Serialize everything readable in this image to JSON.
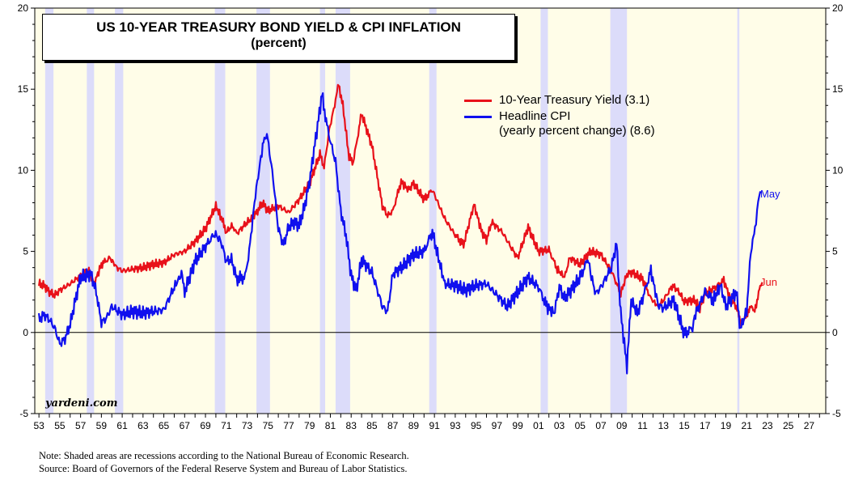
{
  "chart_data": {
    "type": "line",
    "title": "US 10-YEAR TREASURY BOND YIELD & CPI INFLATION",
    "subtitle": "(percent)",
    "ylim": [
      -5,
      20
    ],
    "yticks": [
      -5,
      0,
      5,
      10,
      15,
      20
    ],
    "xlim": [
      1952.6,
      2028.6
    ],
    "xtick_labels": [
      "53",
      "55",
      "57",
      "59",
      "61",
      "63",
      "65",
      "67",
      "69",
      "71",
      "73",
      "75",
      "77",
      "79",
      "81",
      "83",
      "85",
      "87",
      "89",
      "91",
      "93",
      "95",
      "97",
      "99",
      "01",
      "03",
      "05",
      "07",
      "09",
      "11",
      "13",
      "15",
      "17",
      "19",
      "21",
      "23",
      "25",
      "27"
    ],
    "recessions": [
      [
        1953.6,
        1954.4
      ],
      [
        1957.6,
        1958.3
      ],
      [
        1960.3,
        1961.1
      ],
      [
        1969.9,
        1970.9
      ],
      [
        1973.9,
        1975.2
      ],
      [
        1980.0,
        1980.5
      ],
      [
        1981.5,
        1982.9
      ],
      [
        1990.5,
        1991.2
      ],
      [
        2001.2,
        2001.9
      ],
      [
        2007.9,
        2009.5
      ],
      [
        2020.1,
        2020.3
      ]
    ],
    "series": [
      {
        "name": "10-Year Treasury Yield (3.1)",
        "color": "#e8111a",
        "end_label": "Jun",
        "points": [
          [
            1953.0,
            3.0
          ],
          [
            1953.5,
            2.9
          ],
          [
            1954.0,
            2.5
          ],
          [
            1954.5,
            2.3
          ],
          [
            1955.0,
            2.6
          ],
          [
            1956.0,
            3.0
          ],
          [
            1957.0,
            3.5
          ],
          [
            1957.8,
            3.8
          ],
          [
            1958.3,
            3.0
          ],
          [
            1959.0,
            4.2
          ],
          [
            1959.8,
            4.6
          ],
          [
            1960.5,
            4.0
          ],
          [
            1961.0,
            3.8
          ],
          [
            1962.0,
            3.9
          ],
          [
            1963.0,
            4.0
          ],
          [
            1964.0,
            4.2
          ],
          [
            1965.0,
            4.3
          ],
          [
            1966.0,
            4.8
          ],
          [
            1967.0,
            5.0
          ],
          [
            1968.0,
            5.6
          ],
          [
            1969.0,
            6.4
          ],
          [
            1970.0,
            7.8
          ],
          [
            1970.7,
            6.8
          ],
          [
            1971.0,
            6.2
          ],
          [
            1971.6,
            6.6
          ],
          [
            1972.0,
            6.1
          ],
          [
            1973.0,
            6.8
          ],
          [
            1973.6,
            7.1
          ],
          [
            1974.5,
            8.0
          ],
          [
            1975.0,
            7.5
          ],
          [
            1976.0,
            7.8
          ],
          [
            1977.0,
            7.4
          ],
          [
            1978.0,
            8.2
          ],
          [
            1979.0,
            9.2
          ],
          [
            1980.0,
            11.0
          ],
          [
            1980.4,
            10.2
          ],
          [
            1980.9,
            12.5
          ],
          [
            1981.5,
            14.3
          ],
          [
            1981.8,
            15.3
          ],
          [
            1982.2,
            14.0
          ],
          [
            1982.8,
            10.8
          ],
          [
            1983.2,
            10.5
          ],
          [
            1984.0,
            13.5
          ],
          [
            1985.0,
            11.5
          ],
          [
            1986.0,
            7.8
          ],
          [
            1986.5,
            7.2
          ],
          [
            1987.0,
            7.5
          ],
          [
            1987.8,
            9.3
          ],
          [
            1988.5,
            8.8
          ],
          [
            1989.0,
            9.2
          ],
          [
            1990.0,
            8.2
          ],
          [
            1990.8,
            8.8
          ],
          [
            1992.0,
            7.0
          ],
          [
            1993.0,
            6.0
          ],
          [
            1993.8,
            5.4
          ],
          [
            1994.8,
            7.9
          ],
          [
            1995.5,
            6.3
          ],
          [
            1996.0,
            5.7
          ],
          [
            1996.5,
            6.8
          ],
          [
            1997.5,
            6.2
          ],
          [
            1998.5,
            5.1
          ],
          [
            1999.0,
            4.6
          ],
          [
            2000.0,
            6.5
          ],
          [
            2001.0,
            5.0
          ],
          [
            2002.0,
            5.1
          ],
          [
            2002.8,
            3.9
          ],
          [
            2003.5,
            3.4
          ],
          [
            2004.0,
            4.6
          ],
          [
            2005.0,
            4.2
          ],
          [
            2006.0,
            5.0
          ],
          [
            2007.0,
            4.8
          ],
          [
            2008.0,
            3.8
          ],
          [
            2008.9,
            2.4
          ],
          [
            2009.5,
            3.6
          ],
          [
            2010.0,
            3.7
          ],
          [
            2011.0,
            3.3
          ],
          [
            2011.8,
            2.1
          ],
          [
            2012.5,
            1.6
          ],
          [
            2013.0,
            2.0
          ],
          [
            2013.9,
            2.9
          ],
          [
            2014.5,
            2.5
          ],
          [
            2015.0,
            1.9
          ],
          [
            2016.0,
            2.0
          ],
          [
            2016.5,
            1.5
          ],
          [
            2017.0,
            2.4
          ],
          [
            2018.0,
            2.8
          ],
          [
            2018.8,
            3.2
          ],
          [
            2019.5,
            2.0
          ],
          [
            2020.0,
            1.6
          ],
          [
            2020.4,
            0.7
          ],
          [
            2020.7,
            0.65
          ],
          [
            2021.0,
            1.1
          ],
          [
            2021.3,
            1.6
          ],
          [
            2021.7,
            1.4
          ],
          [
            2022.0,
            1.8
          ],
          [
            2022.3,
            2.9
          ],
          [
            2022.5,
            3.1
          ]
        ]
      },
      {
        "name": "Headline CPI",
        "name_note": "(yearly percent change) (8.6)",
        "color": "#1010ee",
        "end_label": "May",
        "points": [
          [
            1953.0,
            0.8
          ],
          [
            1953.5,
            1.1
          ],
          [
            1954.0,
            0.8
          ],
          [
            1954.5,
            0.3
          ],
          [
            1955.0,
            -0.7
          ],
          [
            1955.5,
            -0.4
          ],
          [
            1956.0,
            0.5
          ],
          [
            1956.5,
            2.0
          ],
          [
            1957.0,
            3.4
          ],
          [
            1957.5,
            3.5
          ],
          [
            1958.0,
            3.6
          ],
          [
            1958.5,
            2.5
          ],
          [
            1959.0,
            0.6
          ],
          [
            1959.5,
            0.9
          ],
          [
            1960.0,
            1.6
          ],
          [
            1961.0,
            1.1
          ],
          [
            1962.0,
            1.3
          ],
          [
            1963.0,
            1.2
          ],
          [
            1964.0,
            1.3
          ],
          [
            1965.0,
            1.4
          ],
          [
            1966.0,
            2.8
          ],
          [
            1966.7,
            3.6
          ],
          [
            1967.0,
            2.5
          ],
          [
            1968.0,
            4.4
          ],
          [
            1969.0,
            5.3
          ],
          [
            1969.9,
            6.1
          ],
          [
            1970.5,
            5.6
          ],
          [
            1971.0,
            4.4
          ],
          [
            1971.5,
            4.5
          ],
          [
            1972.0,
            3.3
          ],
          [
            1972.8,
            3.4
          ],
          [
            1973.2,
            5.0
          ],
          [
            1973.8,
            8.5
          ],
          [
            1974.5,
            11.5
          ],
          [
            1974.9,
            12.3
          ],
          [
            1975.5,
            9.5
          ],
          [
            1976.0,
            6.4
          ],
          [
            1976.5,
            5.4
          ],
          [
            1977.0,
            6.5
          ],
          [
            1977.5,
            6.8
          ],
          [
            1978.0,
            6.6
          ],
          [
            1978.5,
            7.7
          ],
          [
            1979.0,
            9.3
          ],
          [
            1979.6,
            12.0
          ],
          [
            1980.2,
            14.7
          ],
          [
            1980.6,
            13.0
          ],
          [
            1981.0,
            11.8
          ],
          [
            1981.5,
            10.5
          ],
          [
            1982.0,
            7.5
          ],
          [
            1982.5,
            6.0
          ],
          [
            1983.0,
            3.5
          ],
          [
            1983.5,
            2.6
          ],
          [
            1984.0,
            4.5
          ],
          [
            1985.0,
            3.7
          ],
          [
            1986.0,
            1.6
          ],
          [
            1986.5,
            1.3
          ],
          [
            1987.0,
            3.6
          ],
          [
            1988.0,
            4.1
          ],
          [
            1989.0,
            4.8
          ],
          [
            1990.0,
            5.0
          ],
          [
            1990.8,
            6.2
          ],
          [
            1991.3,
            4.8
          ],
          [
            1992.0,
            3.0
          ],
          [
            1993.0,
            2.9
          ],
          [
            1994.0,
            2.6
          ],
          [
            1995.0,
            2.9
          ],
          [
            1996.0,
            3.0
          ],
          [
            1997.0,
            2.3
          ],
          [
            1998.0,
            1.6
          ],
          [
            1999.0,
            2.5
          ],
          [
            2000.0,
            3.4
          ],
          [
            2001.0,
            2.8
          ],
          [
            2001.8,
            1.6
          ],
          [
            2002.5,
            1.2
          ],
          [
            2003.0,
            2.8
          ],
          [
            2003.5,
            2.1
          ],
          [
            2004.0,
            2.5
          ],
          [
            2005.0,
            3.4
          ],
          [
            2005.8,
            4.6
          ],
          [
            2006.0,
            3.6
          ],
          [
            2006.5,
            2.4
          ],
          [
            2007.0,
            2.8
          ],
          [
            2007.5,
            3.4
          ],
          [
            2008.0,
            4.0
          ],
          [
            2008.5,
            5.5
          ],
          [
            2008.9,
            1.2
          ],
          [
            2009.5,
            -2.1
          ],
          [
            2009.9,
            2.0
          ],
          [
            2010.5,
            1.2
          ],
          [
            2011.0,
            2.1
          ],
          [
            2011.8,
            3.8
          ],
          [
            2012.5,
            1.7
          ],
          [
            2013.0,
            1.5
          ],
          [
            2014.0,
            2.0
          ],
          [
            2015.0,
            -0.1
          ],
          [
            2015.8,
            0.3
          ],
          [
            2016.0,
            1.0
          ],
          [
            2017.0,
            2.5
          ],
          [
            2017.8,
            2.0
          ],
          [
            2018.5,
            2.9
          ],
          [
            2019.0,
            1.6
          ],
          [
            2020.0,
            2.5
          ],
          [
            2020.4,
            0.2
          ],
          [
            2020.9,
            1.2
          ],
          [
            2021.0,
            1.4
          ],
          [
            2021.3,
            4.2
          ],
          [
            2021.5,
            5.4
          ],
          [
            2021.8,
            6.2
          ],
          [
            2022.0,
            7.5
          ],
          [
            2022.2,
            8.5
          ],
          [
            2022.4,
            8.6
          ]
        ]
      }
    ],
    "notes": [
      "Note: Shaded areas are recessions according to the National Bureau of Economic Research.",
      "Source: Board of Governors of the Federal Reserve System and Bureau of Labor Statistics."
    ],
    "watermark": "yardeni.com"
  },
  "legend_text": {
    "series1": "10-Year Treasury Yield (3.1)",
    "series2": "Headline CPI",
    "series2_note": "(yearly percent change) (8.6)"
  },
  "colors": {
    "recession": "#dcdcfa",
    "background": "#fffde8",
    "yield": "#e8111a",
    "cpi": "#1010ee"
  }
}
